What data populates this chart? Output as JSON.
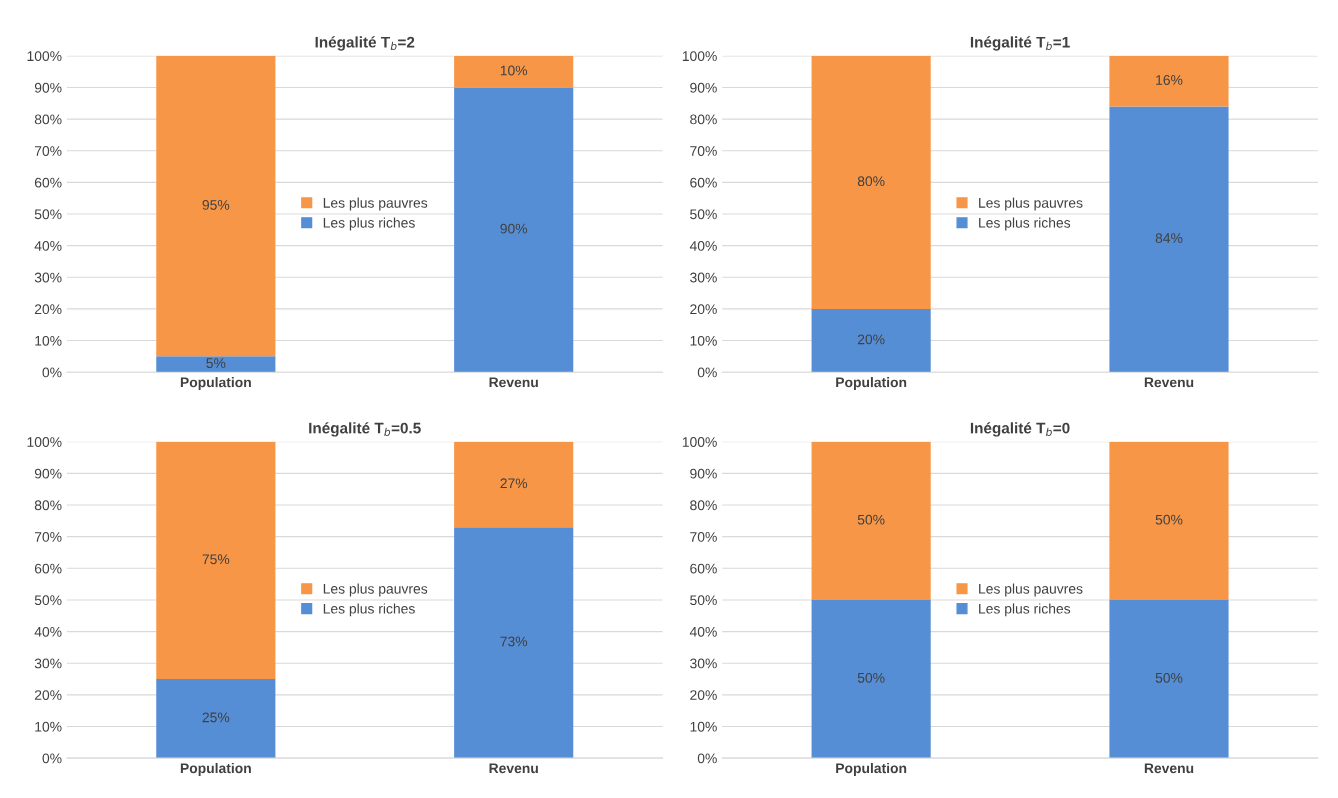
{
  "chart_data": [
    {
      "type": "bar",
      "title": "Inégalité T$_{b}$=2",
      "categories": [
        "Population",
        "Revenu"
      ],
      "stacked": true,
      "grid": "y",
      "legend": "center",
      "ylim": [
        0,
        100
      ],
      "yticks": [
        {
          "value": 0,
          "label": "0%"
        },
        {
          "value": 10,
          "label": "10%"
        },
        {
          "value": 20,
          "label": "20%"
        },
        {
          "value": 30,
          "label": "30%"
        },
        {
          "value": 40,
          "label": "40%"
        },
        {
          "value": 50,
          "label": "50%"
        },
        {
          "value": 60,
          "label": "60%"
        },
        {
          "value": 70,
          "label": "70%"
        },
        {
          "value": 80,
          "label": "80%"
        },
        {
          "value": 90,
          "label": "90%"
        },
        {
          "value": 100,
          "label": "100%"
        }
      ],
      "series": [
        {
          "name": "Les plus riches",
          "color": "#558ed5",
          "values": [
            5,
            90
          ],
          "value_labels": [
            "5%",
            "90%"
          ]
        },
        {
          "name": "Les plus pauvres",
          "color": "#f79646",
          "values": [
            95,
            10
          ],
          "value_labels": [
            "95%",
            "10%"
          ]
        }
      ]
    },
    {
      "type": "bar",
      "title": "Inégalité T$_{b}$=1",
      "categories": [
        "Population",
        "Revenu"
      ],
      "stacked": true,
      "grid": "y",
      "legend": "center",
      "ylim": [
        0,
        100
      ],
      "yticks": [
        {
          "value": 0,
          "label": "0%"
        },
        {
          "value": 10,
          "label": "10%"
        },
        {
          "value": 20,
          "label": "20%"
        },
        {
          "value": 30,
          "label": "30%"
        },
        {
          "value": 40,
          "label": "40%"
        },
        {
          "value": 50,
          "label": "50%"
        },
        {
          "value": 60,
          "label": "60%"
        },
        {
          "value": 70,
          "label": "70%"
        },
        {
          "value": 80,
          "label": "80%"
        },
        {
          "value": 90,
          "label": "90%"
        },
        {
          "value": 100,
          "label": "100%"
        }
      ],
      "series": [
        {
          "name": "Les plus riches",
          "color": "#558ed5",
          "values": [
            20,
            84
          ],
          "value_labels": [
            "20%",
            "84%"
          ]
        },
        {
          "name": "Les plus pauvres",
          "color": "#f79646",
          "values": [
            80,
            16
          ],
          "value_labels": [
            "80%",
            "16%"
          ]
        }
      ]
    },
    {
      "type": "bar",
      "title": "Inégalité T$_{b}$=0.5",
      "categories": [
        "Population",
        "Revenu"
      ],
      "stacked": true,
      "grid": "y",
      "legend": "center",
      "ylim": [
        0,
        100
      ],
      "yticks": [
        {
          "value": 0,
          "label": "0%"
        },
        {
          "value": 10,
          "label": "10%"
        },
        {
          "value": 20,
          "label": "20%"
        },
        {
          "value": 30,
          "label": "30%"
        },
        {
          "value": 40,
          "label": "40%"
        },
        {
          "value": 50,
          "label": "50%"
        },
        {
          "value": 60,
          "label": "60%"
        },
        {
          "value": 70,
          "label": "70%"
        },
        {
          "value": 80,
          "label": "80%"
        },
        {
          "value": 90,
          "label": "90%"
        },
        {
          "value": 100,
          "label": "100%"
        }
      ],
      "series": [
        {
          "name": "Les plus riches",
          "color": "#558ed5",
          "values": [
            25,
            73
          ],
          "value_labels": [
            "25%",
            "73%"
          ]
        },
        {
          "name": "Les plus pauvres",
          "color": "#f79646",
          "values": [
            75,
            27
          ],
          "value_labels": [
            "75%",
            "27%"
          ]
        }
      ]
    },
    {
      "type": "bar",
      "title": "Inégalité T$_{b}$=0",
      "categories": [
        "Population",
        "Revenu"
      ],
      "stacked": true,
      "grid": "y",
      "legend": "center",
      "ylim": [
        0,
        100
      ],
      "yticks": [
        {
          "value": 0,
          "label": "0%"
        },
        {
          "value": 10,
          "label": "10%"
        },
        {
          "value": 20,
          "label": "20%"
        },
        {
          "value": 30,
          "label": "30%"
        },
        {
          "value": 40,
          "label": "40%"
        },
        {
          "value": 50,
          "label": "50%"
        },
        {
          "value": 60,
          "label": "60%"
        },
        {
          "value": 70,
          "label": "70%"
        },
        {
          "value": 80,
          "label": "80%"
        },
        {
          "value": 90,
          "label": "90%"
        },
        {
          "value": 100,
          "label": "100%"
        }
      ],
      "series": [
        {
          "name": "Les plus riches",
          "color": "#558ed5",
          "values": [
            50,
            50
          ],
          "value_labels": [
            "50%",
            "50%"
          ]
        },
        {
          "name": "Les plus pauvres",
          "color": "#f79646",
          "values": [
            50,
            50
          ],
          "value_labels": [
            "50%",
            "50%"
          ]
        }
      ]
    }
  ]
}
